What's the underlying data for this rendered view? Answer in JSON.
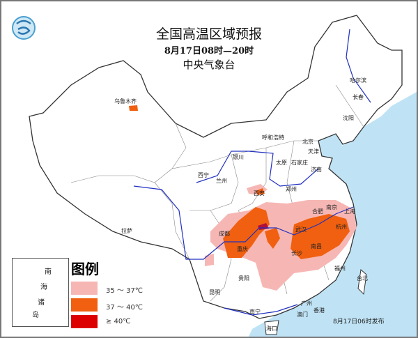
{
  "header": {
    "title": "全国高温区域预报",
    "period": "8月17日08时—20时",
    "issuer": "中央气象台"
  },
  "logo": {
    "icon": "cma-logo-icon"
  },
  "cities": [
    "乌鲁木齐",
    "哈尔滨",
    "长春",
    "沈阳",
    "呼和浩特",
    "北京",
    "天津",
    "银川",
    "太原",
    "石家庄",
    "济南",
    "西宁",
    "兰州",
    "西安",
    "郑州",
    "合肥",
    "南京",
    "上海",
    "杭州",
    "武汉",
    "成都",
    "重庆",
    "长沙",
    "南昌",
    "拉萨",
    "贵阳",
    "昆明",
    "南宁",
    "福州",
    "台北",
    "广州",
    "香港",
    "澳门",
    "海口"
  ],
  "legend": {
    "title": "图例",
    "items": [
      {
        "label": "35 ～ 37℃",
        "color": "#f6b7b4"
      },
      {
        "label": "37 ～ 40℃",
        "color": "#f06010"
      },
      {
        "label": "≥ 40℃",
        "color": "#dc0000"
      }
    ]
  },
  "inset": {
    "chars": [
      "南",
      "海",
      "诸",
      "岛"
    ]
  },
  "footer": {
    "issued": "8月17日06时发布"
  },
  "colors": {
    "sea": "#bfe3f5",
    "river": "#2030c0",
    "border": "#333333"
  }
}
